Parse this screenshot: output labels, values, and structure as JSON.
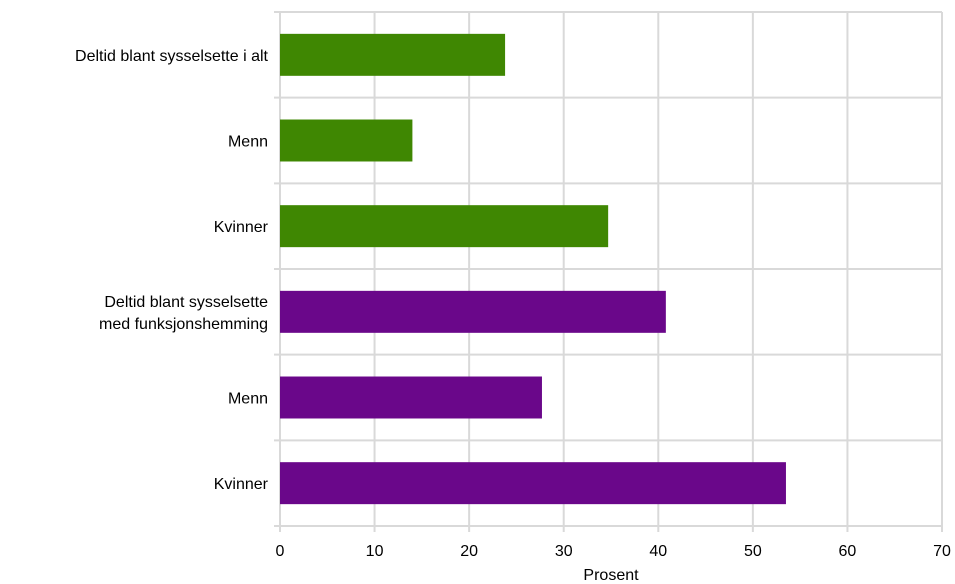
{
  "chart_data": {
    "type": "bar",
    "orientation": "horizontal",
    "title": "",
    "xlabel": "Prosent",
    "ylabel": "",
    "xlim": [
      0,
      70
    ],
    "xticks": [
      0,
      10,
      20,
      30,
      40,
      50,
      60,
      70
    ],
    "grid": true,
    "legend": "none",
    "categories": [
      {
        "lines": [
          "Deltid blant sysselsette i alt"
        ]
      },
      {
        "lines": [
          "Menn"
        ]
      },
      {
        "lines": [
          "Kvinner"
        ]
      },
      {
        "lines": [
          "Deltid blant sysselsette",
          "med funksjonshemming"
        ]
      },
      {
        "lines": [
          "Menn"
        ]
      },
      {
        "lines": [
          "Kvinner"
        ]
      }
    ],
    "values": [
      23.8,
      14.0,
      34.7,
      40.8,
      27.7,
      53.5
    ],
    "colors": [
      "#3f8702",
      "#3f8702",
      "#3f8702",
      "#6a078a",
      "#6a078a",
      "#6a078a"
    ],
    "grid_color": "#d9d9d9"
  }
}
